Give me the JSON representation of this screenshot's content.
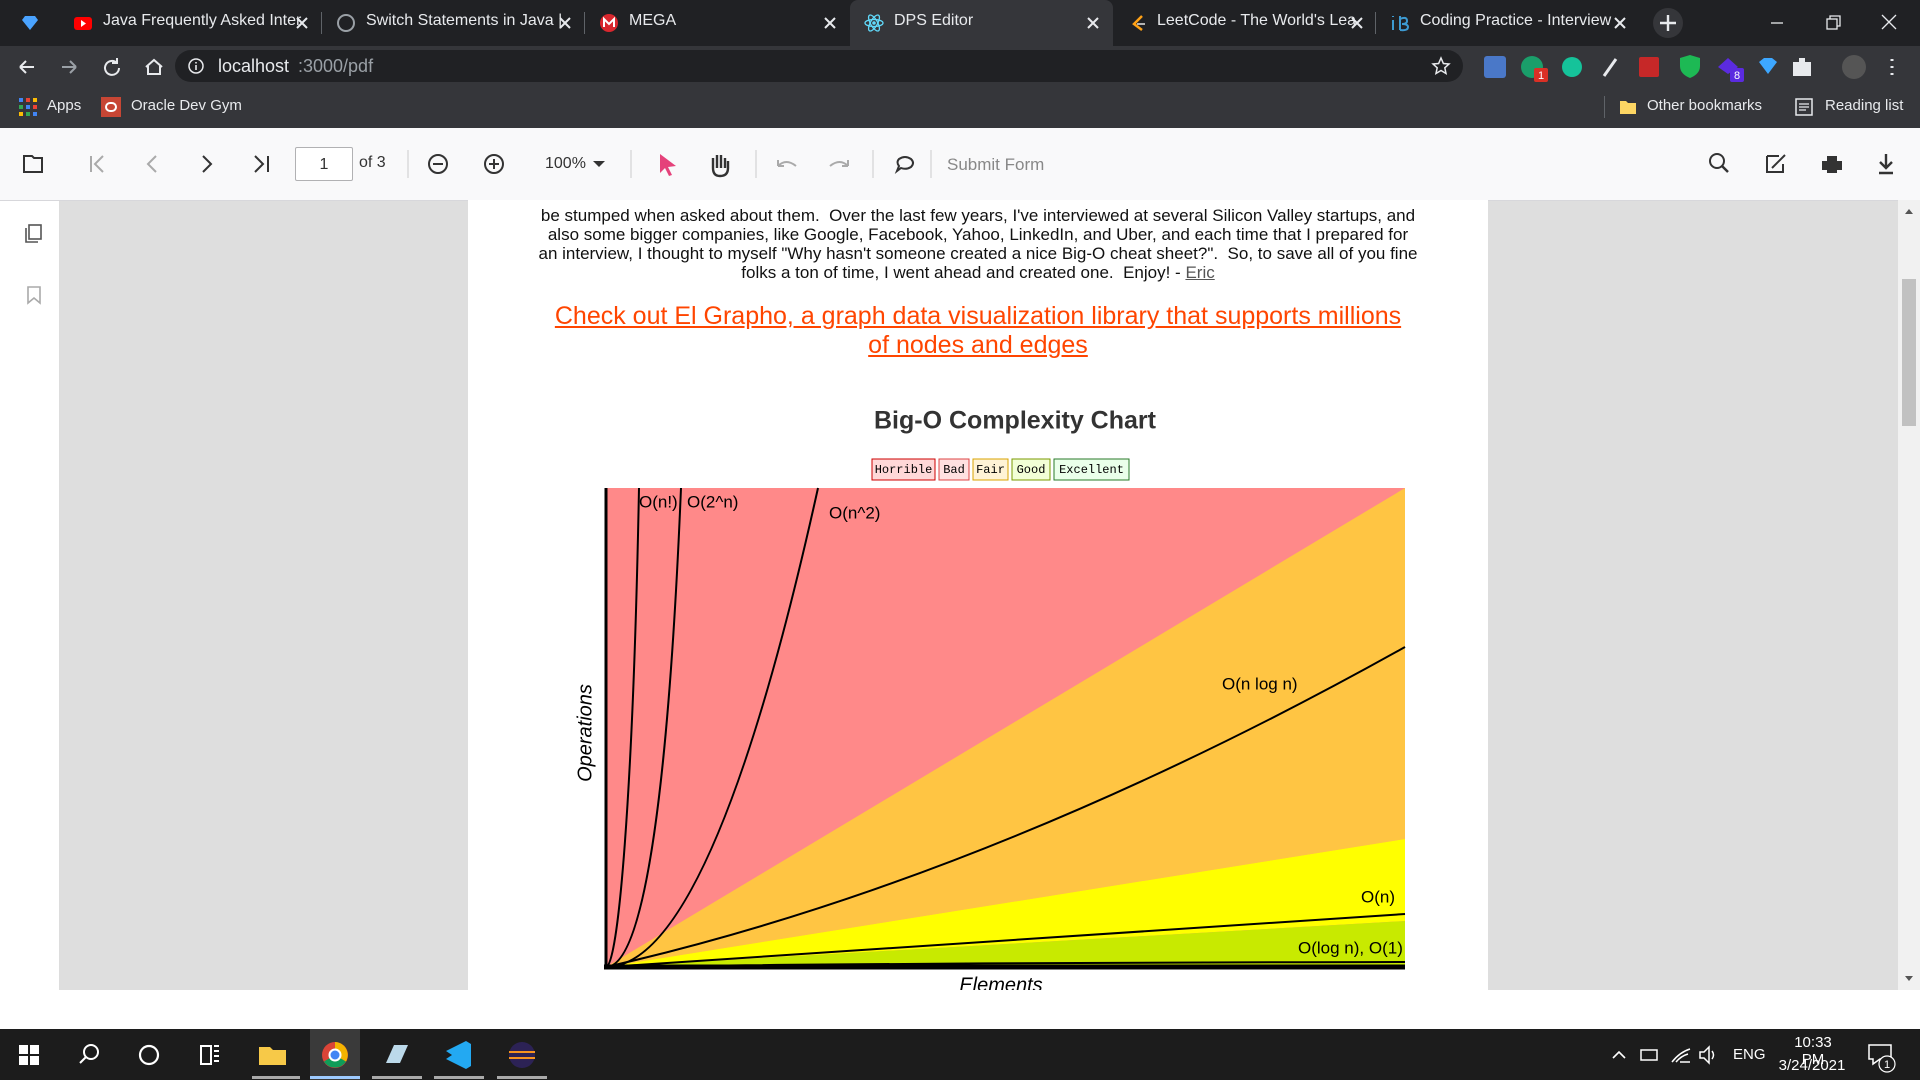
{
  "tabs": [
    {
      "title": "Java Frequently Asked Inter"
    },
    {
      "title": "Switch Statements in Java |"
    },
    {
      "title": "MEGA"
    },
    {
      "title": "DPS Editor"
    },
    {
      "title": "LeetCode - The World's Lea"
    },
    {
      "title": "Coding Practice - Interview"
    }
  ],
  "address_bar": {
    "host": "localhost",
    "path": ":3000/pdf"
  },
  "extension_badges": [
    "1",
    "8"
  ],
  "bookmarks": [
    "Apps",
    "Oracle Dev Gym",
    "Other bookmarks",
    "Reading list"
  ],
  "pdf_toolbar": {
    "page": "1",
    "page_count": "of 3",
    "zoom": "100%",
    "submit": "Submit Form"
  },
  "document": {
    "paragraph": [
      "be stumped when asked about them.  Over the last few years, I've interviewed at several Silicon Valley startups, and",
      "also some bigger companies, like Google, Facebook, Yahoo, LinkedIn, and Uber, and each time that I prepared for",
      "an interview, I thought to myself \"Why hasn't someone created a nice Big-O cheat sheet?\".  So, to save all of you fine",
      "folks a ton of time, I went ahead and created one.  Enjoy! - "
    ],
    "signature": "Eric",
    "link": [
      "Check out El Grapho, a graph data visualization library that supports millions",
      "of nodes and edges"
    ],
    "chart": {
      "title": "Big-O Complexity Chart",
      "legend": [
        "Horrible",
        "Bad",
        "Fair",
        "Good",
        "Excellent"
      ],
      "curves": [
        "O(n!)",
        "O(2^n)",
        "O(n^2)",
        "O(n log n)",
        "O(n)",
        "O(log n), O(1)"
      ],
      "x_label": "Elements",
      "y_label": "Operations"
    }
  },
  "taskbar": {
    "language": "ENG",
    "time": "10:33 PM",
    "date": "3/24/2021",
    "notifications": "1"
  }
}
